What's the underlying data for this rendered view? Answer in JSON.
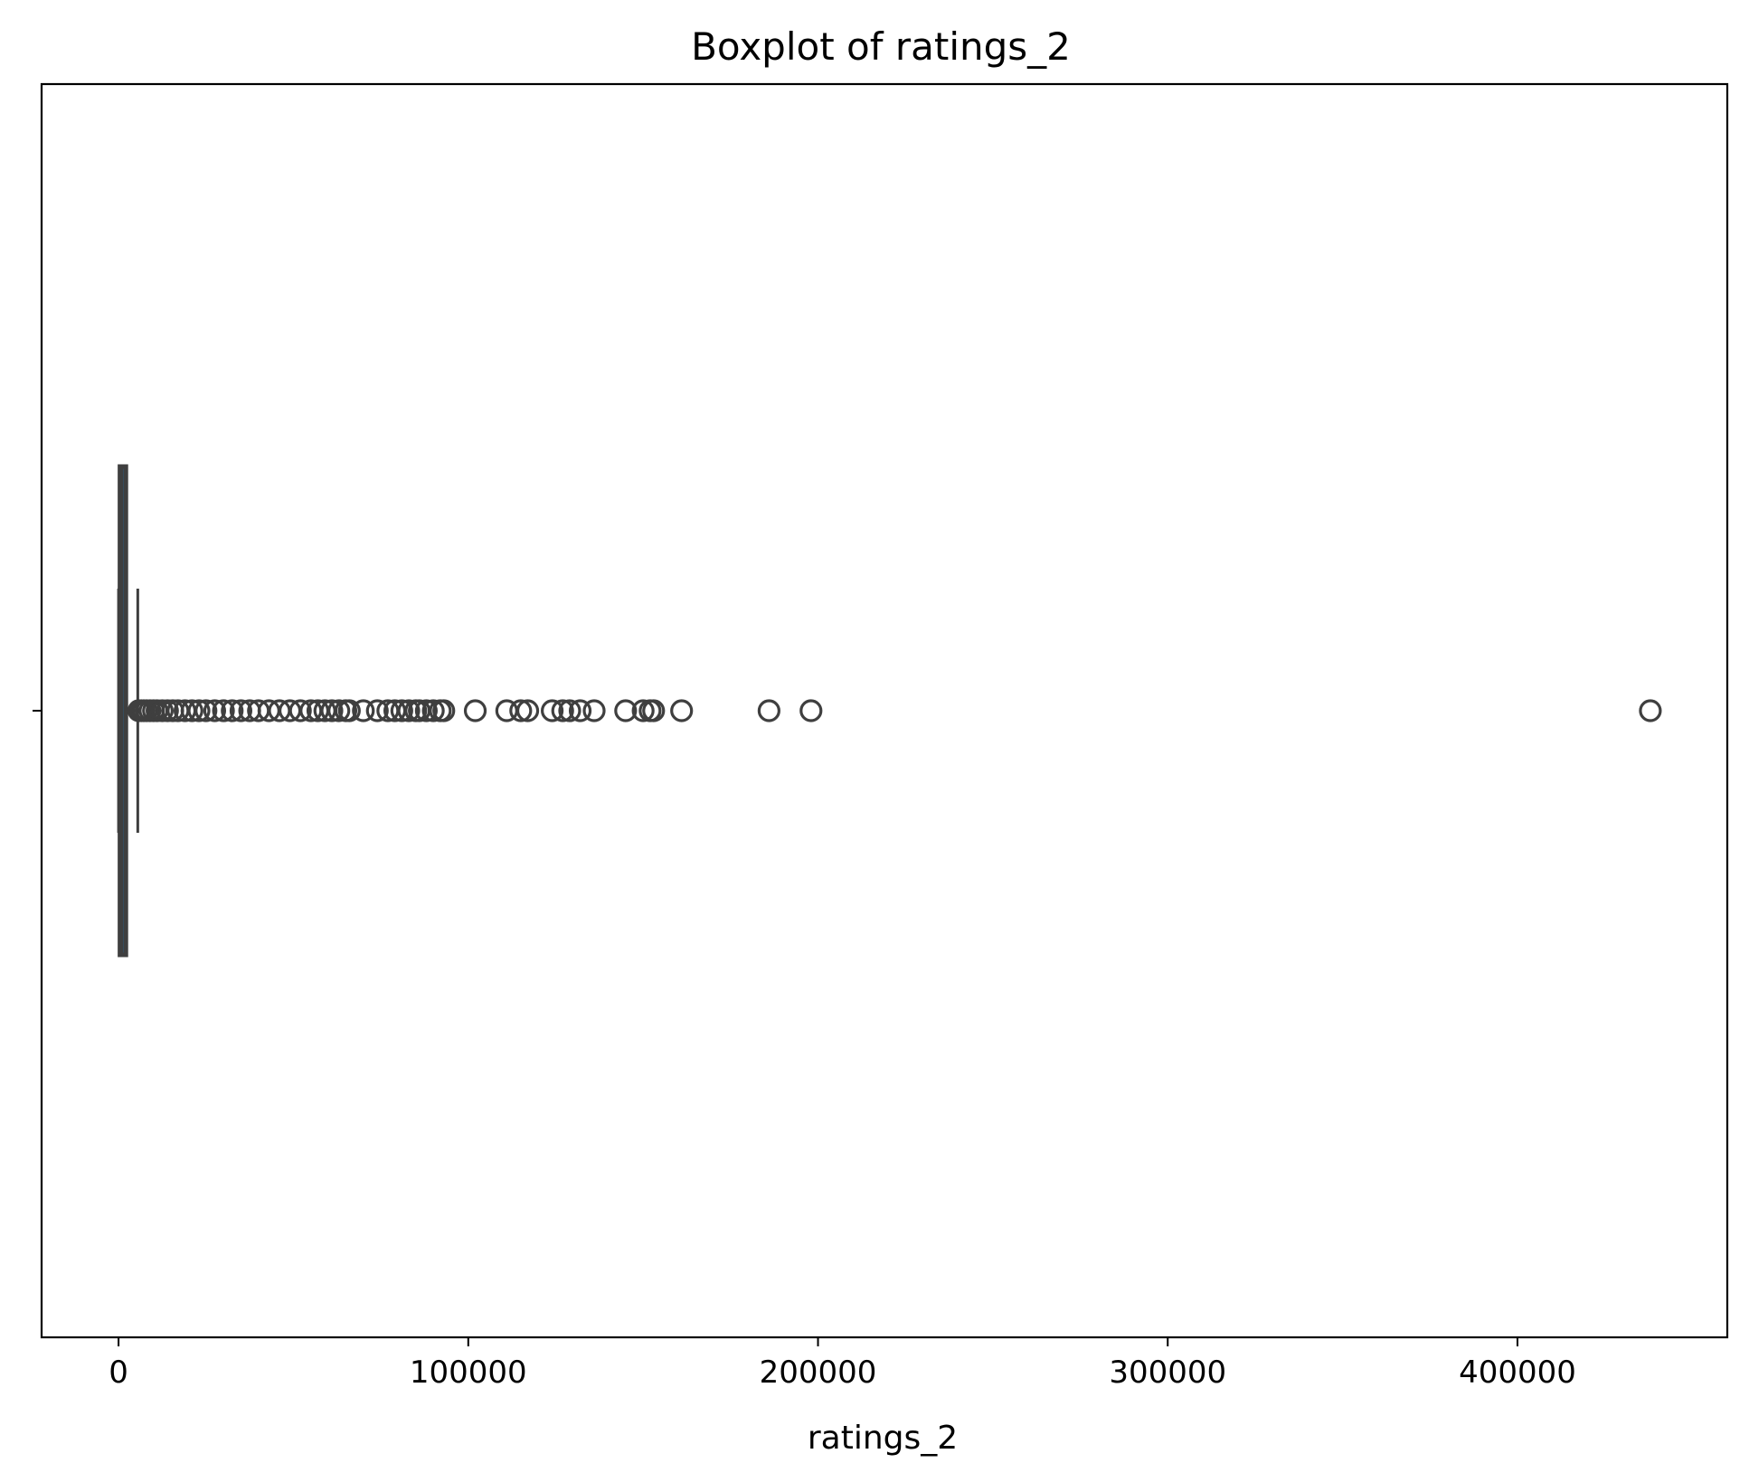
{
  "chart_data": {
    "type": "boxplot",
    "orientation": "horizontal",
    "title": "Boxplot of ratings_2",
    "xlabel": "ratings_2",
    "ylabel": "",
    "xlim": [
      -22000,
      460000
    ],
    "xticks": [
      0,
      100000,
      200000,
      300000,
      400000
    ],
    "xtick_labels": [
      "0",
      "100000",
      "200000",
      "300000",
      "400000"
    ],
    "grid": false,
    "box": {
      "whisker_low": 0,
      "q1": 400,
      "median": 1000,
      "q3": 2100,
      "whisker_high": 5500
    },
    "outliers": [
      5800,
      6500,
      7200,
      8000,
      9000,
      10000,
      11000,
      12500,
      14000,
      15500,
      17000,
      19000,
      21000,
      23000,
      25000,
      27500,
      30000,
      32500,
      35000,
      37500,
      40000,
      43000,
      46000,
      49000,
      52000,
      55000,
      57000,
      59000,
      61000,
      63000,
      65000,
      66000,
      70000,
      74000,
      77000,
      79000,
      81000,
      83000,
      85000,
      86000,
      88000,
      90000,
      92000,
      93000,
      102000,
      111000,
      115000,
      117000,
      124000,
      127000,
      129000,
      132000,
      136000,
      145000,
      150000,
      152000,
      153000,
      161000,
      186000,
      198000,
      438000
    ],
    "colors": {
      "box_edge": "#3f3f3f",
      "box_fill": "#1f77b4",
      "outlier_edge": "#3f3f3f",
      "axes": "#000000"
    }
  }
}
